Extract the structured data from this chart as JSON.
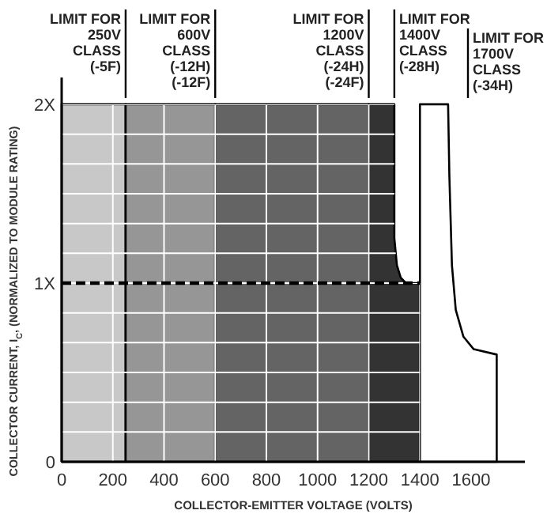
{
  "chart_data": {
    "type": "area",
    "xlabel": "COLLECTOR-EMITTER VOLTAGE (VOLTS)",
    "ylabel": "COLLECTOR CURRENT, I$_{C}$, (NORMALIZED TO MODULE RATING)",
    "xlim": [
      0,
      1810
    ],
    "ylim": [
      0,
      2.15
    ],
    "xticks": [
      0,
      200,
      400,
      600,
      800,
      1000,
      1200,
      1400,
      1600
    ],
    "yticks": [
      {
        "value": 0,
        "label": "0"
      },
      {
        "value": 0.167,
        "label": null
      },
      {
        "value": 0.333,
        "label": null
      },
      {
        "value": 0.5,
        "label": null
      },
      {
        "value": 0.667,
        "label": null
      },
      {
        "value": 0.833,
        "label": null
      },
      {
        "value": 1,
        "label": "1X"
      },
      {
        "value": 1.167,
        "label": null
      },
      {
        "value": 1.333,
        "label": null
      },
      {
        "value": 1.5,
        "label": null
      },
      {
        "value": 1.667,
        "label": null
      },
      {
        "value": 1.833,
        "label": null
      },
      {
        "value": 2,
        "label": "2X"
      }
    ],
    "grid": true,
    "series": [
      {
        "color": "#c8c8c8",
        "x": [
          0,
          250
        ],
        "values": [
          2,
          2
        ]
      },
      {
        "color": "#969696",
        "x": [
          250,
          600
        ],
        "values": [
          2,
          2
        ]
      },
      {
        "color": "#646464",
        "x": [
          600,
          1200
        ],
        "values": [
          2,
          2
        ]
      },
      {
        "color": "#333333",
        "x": [
          1200,
          1300,
          1300,
          1310,
          1325,
          1345,
          1400
        ],
        "values": [
          2,
          2,
          1.25,
          1.1,
          1.03,
          1,
          1
        ]
      },
      {
        "color": "#ffffff",
        "x": [
          1400,
          1510,
          1515,
          1525,
          1540,
          1570,
          1610,
          1700
        ],
        "values": [
          2,
          2,
          1.6,
          1.1,
          0.85,
          0.7,
          0.63,
          0.6
        ]
      },
      {
        "type": "line",
        "color": "#000000",
        "line_style": "dashed",
        "x": [
          0,
          1400
        ],
        "values": [
          1,
          1
        ]
      }
    ],
    "annotations": [
      {
        "text": "LIMIT FOR\n250V\nCLASS\n(-5F)",
        "x": 250,
        "y": 2
      },
      {
        "text": "LIMIT FOR\n600V\nCLASS\n(-12H)\n(-12F)",
        "x": 600,
        "y": 2
      },
      {
        "text": "LIMIT FOR\n1200V\nCLASS\n(-24H)\n(-24F)",
        "x": 1200,
        "y": 2
      },
      {
        "text": "LIMIT FOR\n1400V\nCLASS\n(-28H)",
        "x": 1300,
        "y": 2
      },
      "LIMIT FOR\n1700V\nCLASS\n(-34H)"
    ]
  }
}
